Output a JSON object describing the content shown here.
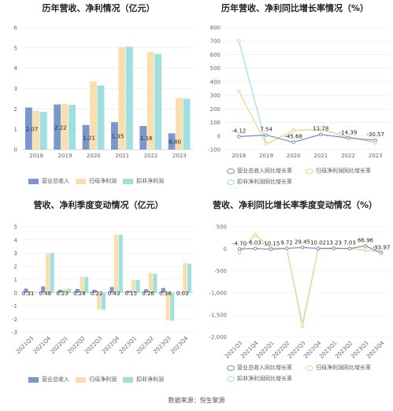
{
  "footer": "数据来源：恒生聚源",
  "chart_data": [
    {
      "type": "bar",
      "title": "历年营收、净利情况（亿元）",
      "categories": [
        "2018",
        "2019",
        "2020",
        "2021",
        "2022",
        "2023"
      ],
      "ylim": [
        0,
        6
      ],
      "yticks": [
        0,
        1,
        2,
        3,
        4,
        5,
        6
      ],
      "series": [
        {
          "name": "营业总收入",
          "color": "#7b96cd",
          "values": [
            2.07,
            2.22,
            1.21,
            1.35,
            1.16,
            0.8
          ]
        },
        {
          "name": "归母净利润",
          "color": "#f9deae",
          "values": [
            1.9,
            2.25,
            3.35,
            5.05,
            4.8,
            2.55
          ]
        },
        {
          "name": "扣非净利润",
          "color": "#9ee0e0",
          "values": [
            1.85,
            2.2,
            3.15,
            5.05,
            4.7,
            2.5
          ]
        }
      ],
      "data_labels": [
        "2.07",
        "2.22",
        "1.21",
        "1.35",
        "1.16",
        "0.80"
      ]
    },
    {
      "type": "line",
      "title": "历年营收、净利同比增长率情况（%）",
      "categories": [
        "2018",
        "2019",
        "2020",
        "2021",
        "2022",
        "2023"
      ],
      "ylim": [
        -100,
        800
      ],
      "yticks": [
        -100,
        0,
        100,
        200,
        300,
        400,
        500,
        600,
        700,
        800
      ],
      "series": [
        {
          "name": "营业总收入同比增长率",
          "color": "#7b8fb5",
          "values": [
            -4.12,
            7.54,
            -45.68,
            11.78,
            -14.39,
            -30.57
          ]
        },
        {
          "name": "归母净利润同比增长率",
          "color": "#f6d48a",
          "values": [
            330,
            -60,
            40,
            50,
            -5,
            -47
          ]
        },
        {
          "name": "扣非净利润同比增长率",
          "color": "#9ee0e0",
          "values": [
            700,
            -60,
            42,
            48,
            -8,
            -50
          ]
        }
      ],
      "data_labels": [
        "-4.12",
        "7.54",
        "-45.68",
        "11.78",
        "-14.39",
        "-30.57"
      ]
    },
    {
      "type": "bar",
      "title": "营收、净利季度变动情况（亿元）",
      "categories": [
        "2021Q3",
        "2021Q4",
        "2022Q1",
        "2022Q2",
        "2022Q3",
        "2022Q4",
        "2023Q1",
        "2023Q2",
        "2023Q3",
        "2023Q4"
      ],
      "ylim": [
        -3,
        5
      ],
      "yticks": [
        -3,
        -2,
        -1,
        0,
        1,
        2,
        3,
        4,
        5
      ],
      "series": [
        {
          "name": "营业总收入",
          "color": "#7b96cd",
          "values": [
            0.31,
            0.48,
            0.23,
            0.28,
            0.22,
            0.43,
            0.15,
            0.26,
            0.36,
            0.03
          ]
        },
        {
          "name": "归母净利润",
          "color": "#f9deae",
          "values": [
            0.1,
            3.0,
            0.3,
            1.2,
            -1.25,
            4.4,
            0.95,
            1.5,
            -2.1,
            2.25
          ]
        },
        {
          "name": "扣非净利润",
          "color": "#9ee0e0",
          "values": [
            0.05,
            3.0,
            0.3,
            1.2,
            -1.3,
            4.4,
            0.95,
            1.45,
            -2.1,
            2.2
          ]
        }
      ],
      "data_labels": [
        "0.31",
        "0.48",
        "0.23",
        "0.28",
        "0.22",
        "0.43",
        "0.15",
        "0.26",
        "0.36",
        "0.03"
      ]
    },
    {
      "type": "line",
      "title": "营收、净利同比增长率季度变动情况（%）",
      "categories": [
        "2021Q3",
        "2021Q4",
        "2022Q1",
        "2022Q2",
        "2022Q3",
        "2022Q4",
        "2023Q1",
        "2023Q2",
        "2023Q3",
        "2023Q4"
      ],
      "ylim": [
        -2000,
        500
      ],
      "yticks": [
        -2000,
        -1500,
        -1000,
        -500,
        0,
        500
      ],
      "series": [
        {
          "name": "营业总收入同比增长率",
          "color": "#7b8fb5",
          "values": [
            -4.7,
            6.03,
            -10.15,
            9.72,
            29.45,
            10.02,
            13.23,
            7.03,
            66.96,
            -93.97
          ]
        },
        {
          "name": "归母净利润同比增长率",
          "color": "#f6d48a",
          "values": [
            -80,
            330,
            20,
            10,
            -1700,
            -5,
            10,
            5,
            -30,
            -60
          ]
        },
        {
          "name": "扣非净利润同比增长率",
          "color": "#9ee0e0",
          "values": [
            -90,
            320,
            18,
            8,
            -1760,
            -8,
            8,
            3,
            -35,
            -70
          ]
        }
      ],
      "data_labels": [
        "-4.70",
        "6.03",
        "-10.15",
        "9.72",
        "29.45",
        "10.02",
        "13.23",
        "7.03",
        "66.96",
        "-93.97"
      ]
    }
  ]
}
